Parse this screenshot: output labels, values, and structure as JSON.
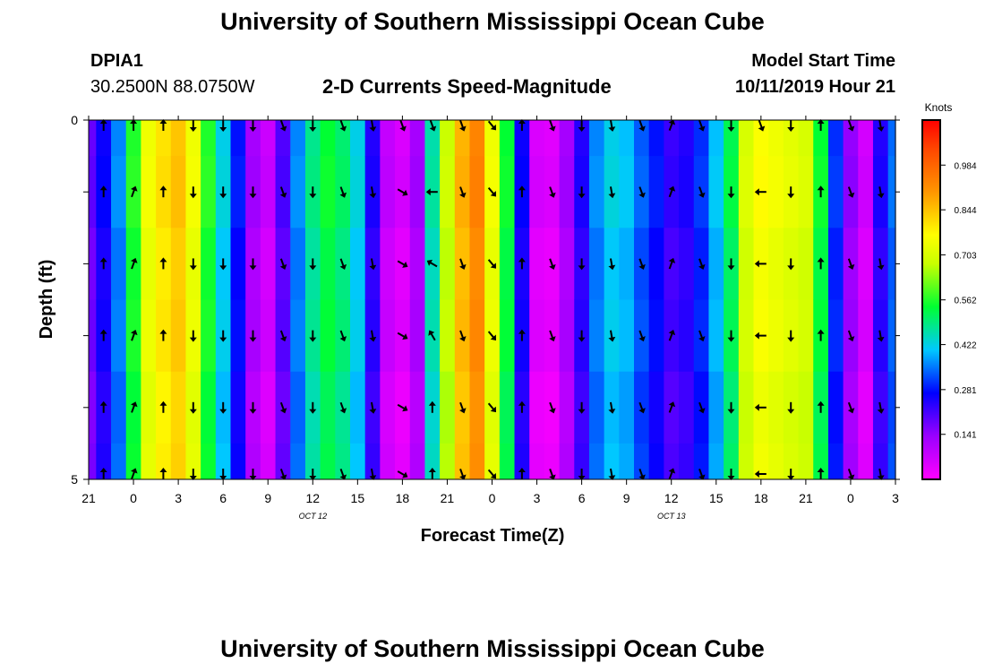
{
  "titles": {
    "top": "University of Southern Mississippi Ocean Cube",
    "bottom": "University of Southern Mississippi Ocean Cube"
  },
  "station": {
    "name": "DPIA1",
    "coords": "30.2500N 88.0750W"
  },
  "model": {
    "label": "Model Start Time",
    "value": "10/11/2019 Hour 21"
  },
  "chart_data": {
    "type": "heatmap",
    "title": "2-D Currents Speed-Magnitude",
    "xlabel": "Forecast Time(Z)",
    "ylabel": "Depth (ft)",
    "x_tick_labels": [
      "21",
      "0",
      "3",
      "6",
      "9",
      "12",
      "15",
      "18",
      "21",
      "0",
      "3",
      "6",
      "9",
      "12",
      "15",
      "18",
      "21",
      "0",
      "3"
    ],
    "x_date_labels": [
      {
        "label": "OCT 12",
        "at_tick": 6
      },
      {
        "label": "OCT 13",
        "at_tick": 14
      }
    ],
    "y_tick_labels": [
      "0",
      "",
      "",
      "",
      "",
      "5"
    ],
    "ylim": [
      0,
      5
    ],
    "colorbar": {
      "title": "Knots",
      "ticks": [
        "0.984",
        "0.844",
        "0.703",
        "0.562",
        "0.422",
        "0.281",
        "0.141"
      ],
      "range": [
        0,
        1.125
      ]
    },
    "time_hours": [
      0,
      1,
      2,
      3,
      4,
      5,
      6,
      7,
      8,
      9,
      10,
      11,
      12,
      13,
      14,
      15,
      16,
      17,
      18,
      19,
      20,
      21,
      22,
      23,
      24,
      25,
      26,
      27,
      28,
      29,
      30,
      31,
      32,
      33,
      34,
      35,
      36,
      37,
      38,
      39,
      40,
      41,
      42,
      43,
      44,
      45,
      46,
      47,
      48,
      49,
      50,
      51,
      52,
      53,
      54
    ],
    "speed_knots": [
      0.18,
      0.26,
      0.36,
      0.56,
      0.74,
      0.8,
      0.84,
      0.74,
      0.56,
      0.42,
      0.28,
      0.12,
      0.07,
      0.2,
      0.36,
      0.48,
      0.54,
      0.5,
      0.42,
      0.24,
      0.08,
      0.05,
      0.12,
      0.46,
      0.68,
      0.86,
      0.93,
      0.74,
      0.54,
      0.26,
      0.05,
      0.04,
      0.12,
      0.24,
      0.36,
      0.42,
      0.4,
      0.33,
      0.28,
      0.22,
      0.24,
      0.3,
      0.4,
      0.52,
      0.7,
      0.76,
      0.74,
      0.72,
      0.7,
      0.54,
      0.3,
      0.14,
      0.06,
      0.24,
      0.34
    ],
    "arrow_times": [
      1,
      3,
      5,
      7,
      9,
      11,
      13,
      15,
      17,
      19,
      21,
      23,
      25,
      27,
      29,
      31,
      33,
      35,
      37,
      39,
      41,
      43,
      45,
      47,
      49,
      51,
      53
    ],
    "arrow_depths": [
      0,
      1,
      2,
      3,
      4,
      5
    ],
    "arrow_directions_deg": [
      [
        0,
        0,
        0,
        180,
        180,
        180,
        160,
        180,
        160,
        170,
        160,
        160,
        160,
        140,
        0,
        160,
        180,
        170,
        160,
        20,
        160,
        180,
        160,
        180,
        0,
        160,
        170
      ],
      [
        0,
        20,
        0,
        180,
        180,
        180,
        160,
        180,
        160,
        170,
        120,
        270,
        160,
        140,
        0,
        160,
        180,
        170,
        160,
        20,
        160,
        180,
        270,
        180,
        0,
        160,
        170
      ],
      [
        0,
        20,
        0,
        180,
        180,
        180,
        160,
        180,
        160,
        170,
        120,
        300,
        160,
        140,
        0,
        160,
        180,
        170,
        160,
        20,
        160,
        180,
        270,
        180,
        0,
        160,
        170
      ],
      [
        0,
        20,
        0,
        180,
        180,
        180,
        160,
        180,
        160,
        170,
        120,
        330,
        160,
        140,
        0,
        160,
        180,
        170,
        160,
        20,
        160,
        180,
        270,
        180,
        0,
        160,
        170
      ],
      [
        0,
        20,
        0,
        180,
        180,
        180,
        160,
        180,
        160,
        170,
        120,
        0,
        160,
        140,
        0,
        160,
        180,
        170,
        160,
        20,
        160,
        180,
        270,
        180,
        0,
        160,
        170
      ],
      [
        0,
        20,
        0,
        180,
        180,
        180,
        160,
        180,
        160,
        170,
        120,
        0,
        160,
        140,
        0,
        160,
        180,
        170,
        160,
        20,
        160,
        180,
        270,
        180,
        0,
        160,
        170
      ]
    ]
  }
}
